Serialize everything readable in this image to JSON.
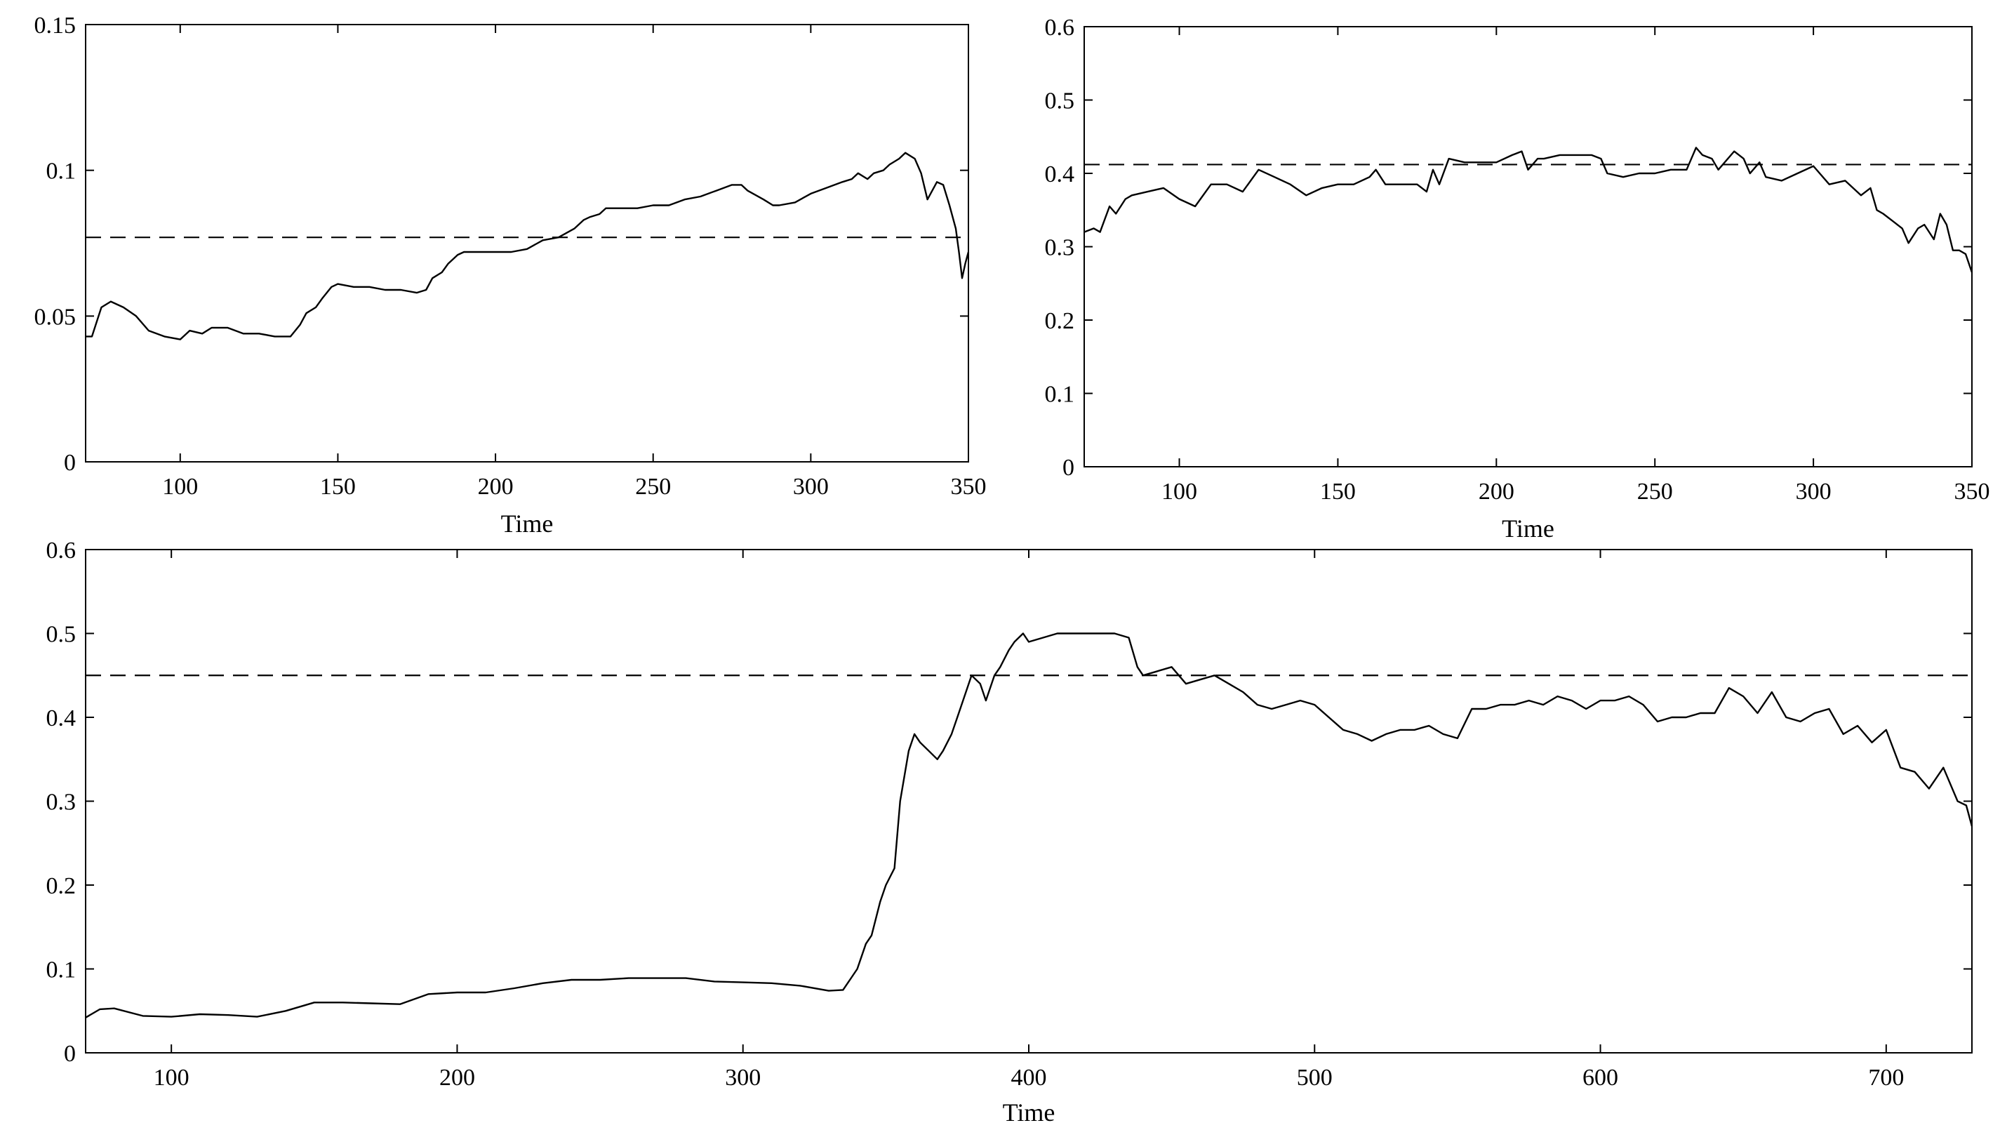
{
  "chart_data": [
    {
      "id": "top-left",
      "type": "line",
      "xlabel": "Time",
      "ylabel": "",
      "xlim": [
        70,
        350
      ],
      "ylim": [
        0,
        0.15
      ],
      "xticks": [
        100,
        150,
        200,
        250,
        300,
        350
      ],
      "yticks": [
        0,
        0.05,
        0.1,
        0.15
      ],
      "ytick_labels": [
        "0",
        "0.05",
        "0.1",
        "0.15"
      ],
      "reference_line": 0.077,
      "series": [
        {
          "x": [
            70,
            72,
            75,
            78,
            82,
            86,
            90,
            95,
            100,
            103,
            107,
            110,
            115,
            120,
            125,
            130,
            135,
            138,
            140,
            143,
            145,
            148,
            150,
            155,
            160,
            165,
            170,
            175,
            178,
            180,
            183,
            185,
            188,
            190,
            195,
            200,
            205,
            210,
            215,
            220,
            225,
            228,
            230,
            233,
            235,
            240,
            245,
            250,
            255,
            260,
            265,
            270,
            275,
            278,
            280,
            285,
            288,
            290,
            295,
            300,
            305,
            310,
            313,
            315,
            318,
            320,
            323,
            325,
            328,
            330,
            333,
            335,
            337,
            340,
            342,
            344,
            346,
            347,
            348,
            349,
            350
          ],
          "y": [
            0.043,
            0.043,
            0.053,
            0.055,
            0.053,
            0.05,
            0.045,
            0.043,
            0.042,
            0.045,
            0.044,
            0.046,
            0.046,
            0.044,
            0.044,
            0.043,
            0.043,
            0.047,
            0.051,
            0.053,
            0.056,
            0.06,
            0.061,
            0.06,
            0.06,
            0.059,
            0.059,
            0.058,
            0.059,
            0.063,
            0.065,
            0.068,
            0.071,
            0.072,
            0.072,
            0.072,
            0.072,
            0.073,
            0.076,
            0.077,
            0.08,
            0.083,
            0.084,
            0.085,
            0.087,
            0.087,
            0.087,
            0.088,
            0.088,
            0.09,
            0.091,
            0.093,
            0.095,
            0.095,
            0.093,
            0.09,
            0.088,
            0.088,
            0.089,
            0.092,
            0.094,
            0.096,
            0.097,
            0.099,
            0.097,
            0.099,
            0.1,
            0.102,
            0.104,
            0.106,
            0.104,
            0.099,
            0.09,
            0.096,
            0.095,
            0.088,
            0.08,
            0.072,
            0.063,
            0.068,
            0.072
          ]
        }
      ]
    },
    {
      "id": "top-right",
      "type": "line",
      "xlabel": "Time",
      "ylabel": "",
      "xlim": [
        70,
        350
      ],
      "ylim": [
        0,
        0.6
      ],
      "xticks": [
        100,
        150,
        200,
        250,
        300,
        350
      ],
      "yticks": [
        0,
        0.1,
        0.2,
        0.3,
        0.4,
        0.5,
        0.6
      ],
      "ytick_labels": [
        "0",
        "0.1",
        "0.2",
        "0.3",
        "0.4",
        "0.5",
        "0.6"
      ],
      "reference_line": 0.412,
      "series": [
        {
          "x": [
            70,
            73,
            75,
            78,
            80,
            83,
            85,
            90,
            95,
            100,
            105,
            110,
            115,
            120,
            125,
            130,
            135,
            140,
            145,
            150,
            155,
            160,
            162,
            165,
            170,
            175,
            178,
            180,
            182,
            185,
            190,
            195,
            200,
            205,
            208,
            210,
            213,
            215,
            220,
            225,
            230,
            233,
            235,
            240,
            245,
            250,
            255,
            260,
            263,
            265,
            268,
            270,
            275,
            278,
            280,
            283,
            285,
            290,
            295,
            300,
            305,
            310,
            315,
            318,
            320,
            322,
            325,
            328,
            330,
            333,
            335,
            338,
            340,
            342,
            344,
            346,
            348,
            350
          ],
          "y": [
            0.32,
            0.325,
            0.32,
            0.355,
            0.345,
            0.365,
            0.37,
            0.375,
            0.38,
            0.365,
            0.355,
            0.385,
            0.385,
            0.375,
            0.405,
            0.395,
            0.385,
            0.37,
            0.38,
            0.385,
            0.385,
            0.395,
            0.405,
            0.385,
            0.385,
            0.385,
            0.375,
            0.405,
            0.385,
            0.42,
            0.415,
            0.415,
            0.415,
            0.425,
            0.43,
            0.405,
            0.42,
            0.42,
            0.425,
            0.425,
            0.425,
            0.42,
            0.4,
            0.395,
            0.4,
            0.4,
            0.405,
            0.405,
            0.435,
            0.425,
            0.42,
            0.405,
            0.43,
            0.42,
            0.4,
            0.415,
            0.395,
            0.39,
            0.4,
            0.41,
            0.385,
            0.39,
            0.37,
            0.38,
            0.35,
            0.345,
            0.335,
            0.325,
            0.305,
            0.325,
            0.33,
            0.31,
            0.345,
            0.33,
            0.295,
            0.295,
            0.29,
            0.265
          ]
        }
      ]
    },
    {
      "id": "bottom",
      "type": "line",
      "xlabel": "Time",
      "ylabel": "",
      "xlim": [
        70,
        730
      ],
      "ylim": [
        0,
        0.6
      ],
      "xticks": [
        100,
        200,
        300,
        400,
        500,
        600,
        700
      ],
      "yticks": [
        0,
        0.1,
        0.2,
        0.3,
        0.4,
        0.5,
        0.6
      ],
      "ytick_labels": [
        "0",
        "0.1",
        "0.2",
        "0.3",
        "0.4",
        "0.5",
        "0.6"
      ],
      "reference_line": 0.45,
      "series": [
        {
          "x": [
            70,
            75,
            80,
            90,
            100,
            110,
            120,
            130,
            140,
            150,
            160,
            170,
            180,
            190,
            200,
            210,
            220,
            230,
            240,
            250,
            260,
            270,
            280,
            290,
            300,
            310,
            320,
            330,
            335,
            338,
            340,
            343,
            345,
            348,
            350,
            353,
            355,
            358,
            360,
            362,
            365,
            368,
            370,
            373,
            375,
            378,
            380,
            383,
            385,
            388,
            390,
            393,
            395,
            398,
            400,
            405,
            410,
            420,
            430,
            435,
            438,
            440,
            445,
            450,
            455,
            460,
            465,
            470,
            475,
            480,
            485,
            490,
            495,
            500,
            505,
            510,
            515,
            520,
            525,
            530,
            535,
            540,
            545,
            550,
            555,
            560,
            565,
            570,
            575,
            580,
            585,
            590,
            595,
            600,
            605,
            610,
            615,
            620,
            625,
            630,
            635,
            640,
            645,
            650,
            655,
            660,
            665,
            670,
            675,
            680,
            685,
            690,
            695,
            700,
            705,
            710,
            715,
            720,
            725,
            728,
            730
          ],
          "y": [
            0.042,
            0.052,
            0.053,
            0.044,
            0.043,
            0.046,
            0.045,
            0.043,
            0.05,
            0.06,
            0.06,
            0.059,
            0.058,
            0.07,
            0.072,
            0.072,
            0.077,
            0.083,
            0.087,
            0.087,
            0.089,
            0.089,
            0.089,
            0.085,
            0.084,
            0.083,
            0.08,
            0.074,
            0.075,
            0.09,
            0.1,
            0.13,
            0.14,
            0.18,
            0.2,
            0.22,
            0.3,
            0.36,
            0.38,
            0.37,
            0.36,
            0.35,
            0.36,
            0.38,
            0.4,
            0.43,
            0.45,
            0.44,
            0.42,
            0.45,
            0.46,
            0.48,
            0.49,
            0.5,
            0.49,
            0.495,
            0.5,
            0.5,
            0.5,
            0.495,
            0.46,
            0.45,
            0.455,
            0.46,
            0.44,
            0.445,
            0.45,
            0.44,
            0.43,
            0.415,
            0.41,
            0.415,
            0.42,
            0.415,
            0.4,
            0.385,
            0.38,
            0.372,
            0.38,
            0.385,
            0.385,
            0.39,
            0.38,
            0.375,
            0.41,
            0.41,
            0.415,
            0.415,
            0.42,
            0.415,
            0.425,
            0.42,
            0.41,
            0.42,
            0.42,
            0.425,
            0.415,
            0.395,
            0.4,
            0.4,
            0.405,
            0.405,
            0.435,
            0.425,
            0.405,
            0.43,
            0.4,
            0.395,
            0.405,
            0.41,
            0.38,
            0.39,
            0.37,
            0.385,
            0.34,
            0.335,
            0.315,
            0.34,
            0.3,
            0.295,
            0.27
          ]
        }
      ]
    }
  ]
}
